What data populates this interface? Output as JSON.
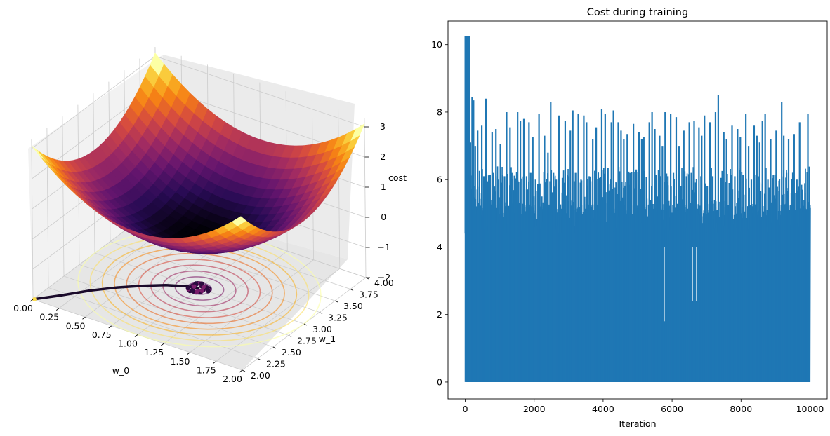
{
  "chart_data": [
    {
      "type": "surface3d",
      "xlabel": "w_0",
      "ylabel": "w_1",
      "zlabel": "cost",
      "xlim": [
        0.0,
        2.0
      ],
      "ylim": [
        2.0,
        4.0
      ],
      "zlim": [
        -2,
        3
      ],
      "x_ticks": [
        "0.00",
        "0.25",
        "0.50",
        "0.75",
        "1.00",
        "1.25",
        "1.50",
        "1.75",
        "2.00"
      ],
      "y_ticks": [
        "2.00",
        "2.25",
        "2.50",
        "2.75",
        "3.00",
        "3.25",
        "3.50",
        "3.75",
        "4.00"
      ],
      "z_ticks": [
        "−2",
        "−1",
        "0",
        "1",
        "2",
        "3"
      ],
      "colormap": "inferno",
      "surface_min": {
        "w_0": 1.0,
        "w_1": 3.0
      },
      "contour_levels": 10,
      "descent_path": [
        [
          0.0,
          2.0
        ],
        [
          0.15,
          2.2
        ],
        [
          0.3,
          2.42
        ],
        [
          0.45,
          2.6
        ],
        [
          0.6,
          2.75
        ],
        [
          0.75,
          2.88
        ],
        [
          0.9,
          2.97
        ],
        [
          1.0,
          3.0
        ]
      ],
      "grid": true
    },
    {
      "type": "line",
      "title": "Cost during training",
      "xlabel": "Iteration",
      "ylabel": "",
      "xlim": [
        -500,
        10500
      ],
      "ylim": [
        -0.5,
        10.7
      ],
      "x_ticks": [
        0,
        2000,
        4000,
        6000,
        8000,
        10000
      ],
      "y_ticks": [
        0,
        2,
        4,
        6,
        8,
        10
      ],
      "x_tick_labels": [
        "0",
        "2000",
        "4000",
        "6000",
        "8000",
        "10000"
      ],
      "y_tick_labels": [
        "0",
        "2",
        "4",
        "6",
        "8",
        "10"
      ],
      "series": [
        {
          "color": "#1f77b4",
          "iterations": 10000,
          "start_value": 10.25,
          "spikes": [
            [
              60,
              10.25
            ],
            [
              110,
              10.25
            ],
            [
              150,
              7.1
            ],
            [
              200,
              8.45
            ],
            [
              240,
              8.35
            ],
            [
              290,
              7.0
            ],
            [
              360,
              7.45
            ],
            [
              420,
              5.6
            ],
            [
              480,
              7.6
            ],
            [
              540,
              6.1
            ],
            [
              600,
              8.4
            ],
            [
              660,
              5.95
            ],
            [
              720,
              6.15
            ],
            [
              780,
              7.4
            ],
            [
              820,
              6.2
            ],
            [
              890,
              7.5
            ],
            [
              960,
              6.0
            ],
            [
              1020,
              7.05
            ],
            [
              1080,
              6.15
            ],
            [
              1140,
              6.1
            ],
            [
              1200,
              8.0
            ],
            [
              1300,
              7.55
            ],
            [
              1350,
              6.2
            ],
            [
              1400,
              5.5
            ],
            [
              1450,
              3.8
            ],
            [
              1520,
              8.0
            ],
            [
              1600,
              7.75
            ],
            [
              1700,
              7.8
            ],
            [
              1780,
              6.1
            ],
            [
              1850,
              7.7
            ],
            [
              1900,
              6.2
            ],
            [
              1960,
              7.25
            ],
            [
              2040,
              6.0
            ],
            [
              2140,
              7.95
            ],
            [
              2220,
              5.5
            ],
            [
              2300,
              7.3
            ],
            [
              2400,
              6.8
            ],
            [
              2480,
              8.3
            ],
            [
              2560,
              6.2
            ],
            [
              2640,
              6.0
            ],
            [
              2720,
              7.9
            ],
            [
              2820,
              6.05
            ],
            [
              2900,
              7.75
            ],
            [
              2980,
              6.1
            ],
            [
              3050,
              7.45
            ],
            [
              3120,
              8.05
            ],
            [
              3200,
              6.2
            ],
            [
              3280,
              7.95
            ],
            [
              3360,
              6.0
            ],
            [
              3440,
              7.9
            ],
            [
              3520,
              7.7
            ],
            [
              3600,
              6.1
            ],
            [
              3700,
              7.2
            ],
            [
              3800,
              7.55
            ],
            [
              3900,
              6.05
            ],
            [
              3960,
              8.1
            ],
            [
              4060,
              7.95
            ],
            [
              4140,
              6.35
            ],
            [
              4240,
              7.7
            ],
            [
              4300,
              8.05
            ],
            [
              4380,
              5.9
            ],
            [
              4440,
              7.7
            ],
            [
              4520,
              7.45
            ],
            [
              4600,
              7.2
            ],
            [
              4700,
              7.35
            ],
            [
              4780,
              6.2
            ],
            [
              4880,
              7.65
            ],
            [
              4960,
              6.3
            ],
            [
              5040,
              7.4
            ],
            [
              5120,
              7.2
            ],
            [
              5180,
              7.25
            ],
            [
              5260,
              5.6
            ],
            [
              5340,
              7.7
            ],
            [
              5420,
              8.0
            ],
            [
              5500,
              7.5
            ],
            [
              5580,
              5.5
            ],
            [
              5640,
              7.3
            ],
            [
              5720,
              7.0
            ],
            [
              5800,
              8.0
            ],
            [
              5880,
              6.1
            ],
            [
              5960,
              7.95
            ],
            [
              6040,
              6.2
            ],
            [
              6120,
              7.85
            ],
            [
              6200,
              7.0
            ],
            [
              6260,
              5.8
            ],
            [
              6340,
              7.45
            ],
            [
              6420,
              6.1
            ],
            [
              6500,
              7.7
            ],
            [
              6560,
              6.2
            ],
            [
              6640,
              7.75
            ],
            [
              6700,
              3.8
            ],
            [
              6780,
              7.55
            ],
            [
              6860,
              7.3
            ],
            [
              6940,
              7.9
            ],
            [
              7020,
              5.8
            ],
            [
              7100,
              7.7
            ],
            [
              7180,
              6.1
            ],
            [
              7260,
              8.0
            ],
            [
              7340,
              8.5
            ],
            [
              7420,
              6.05
            ],
            [
              7500,
              7.4
            ],
            [
              7580,
              7.2
            ],
            [
              7660,
              5.9
            ],
            [
              7740,
              7.6
            ],
            [
              7820,
              6.1
            ],
            [
              7900,
              7.5
            ],
            [
              7980,
              7.25
            ],
            [
              8060,
              6.15
            ],
            [
              8140,
              7.95
            ],
            [
              8220,
              7.0
            ],
            [
              8300,
              6.0
            ],
            [
              8380,
              7.6
            ],
            [
              8460,
              7.3
            ],
            [
              8540,
              7.1
            ],
            [
              8620,
              7.75
            ],
            [
              8700,
              7.95
            ],
            [
              8780,
              6.0
            ],
            [
              8860,
              7.2
            ],
            [
              8940,
              6.15
            ],
            [
              9020,
              7.45
            ],
            [
              9100,
              5.65
            ],
            [
              9180,
              8.3
            ],
            [
              9240,
              7.3
            ],
            [
              9320,
              6.2
            ],
            [
              9380,
              7.2
            ],
            [
              9460,
              5.6
            ],
            [
              9540,
              7.35
            ],
            [
              9620,
              6.0
            ],
            [
              9700,
              7.7
            ],
            [
              9780,
              5.7
            ],
            [
              9860,
              5.6
            ],
            [
              9940,
              7.95
            ],
            [
              9990,
              3.05
            ]
          ],
          "dips": [
            [
              5780,
              1.8
            ],
            [
              6600,
              2.4
            ],
            [
              6700,
              2.4
            ]
          ]
        }
      ],
      "grid": false
    }
  ]
}
